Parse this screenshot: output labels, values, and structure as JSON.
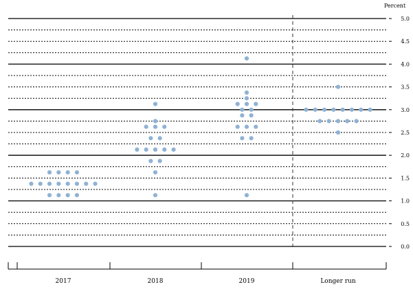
{
  "chart_data": {
    "type": "scatter",
    "unit_label": "Percent",
    "ylim": [
      0,
      5
    ],
    "y_ticks": [
      "0.0",
      "0.5",
      "1.0",
      "1.5",
      "2.0",
      "2.5",
      "3.0",
      "3.5",
      "4.0",
      "4.5",
      "5.0"
    ],
    "categories": [
      "2017",
      "2018",
      "2019",
      "Longer run"
    ],
    "dot_color": "#8fb2d4",
    "grid": "solid at whole percents, dotted at other 0.25 steps",
    "series": [
      {
        "category": "2017",
        "points": [
          {
            "y": 1.625,
            "count": 4
          },
          {
            "y": 1.375,
            "count": 8
          },
          {
            "y": 1.125,
            "count": 4
          }
        ]
      },
      {
        "category": "2018",
        "points": [
          {
            "y": 3.125,
            "count": 1
          },
          {
            "y": 2.75,
            "count": 1
          },
          {
            "y": 2.625,
            "count": 3
          },
          {
            "y": 2.375,
            "count": 2
          },
          {
            "y": 2.125,
            "count": 5
          },
          {
            "y": 1.875,
            "count": 2
          },
          {
            "y": 1.625,
            "count": 1
          },
          {
            "y": 1.125,
            "count": 1
          }
        ]
      },
      {
        "category": "2019",
        "points": [
          {
            "y": 4.125,
            "count": 1
          },
          {
            "y": 3.375,
            "count": 1
          },
          {
            "y": 3.25,
            "count": 1
          },
          {
            "y": 3.125,
            "count": 3
          },
          {
            "y": 3.0,
            "count": 2
          },
          {
            "y": 2.875,
            "count": 2
          },
          {
            "y": 2.625,
            "count": 3
          },
          {
            "y": 2.375,
            "count": 2
          },
          {
            "y": 1.125,
            "count": 1
          }
        ]
      },
      {
        "category": "Longer run",
        "points": [
          {
            "y": 3.5,
            "count": 1
          },
          {
            "y": 3.0,
            "count": 8
          },
          {
            "y": 2.75,
            "count": 5
          },
          {
            "y": 2.5,
            "count": 1
          }
        ]
      }
    ]
  }
}
